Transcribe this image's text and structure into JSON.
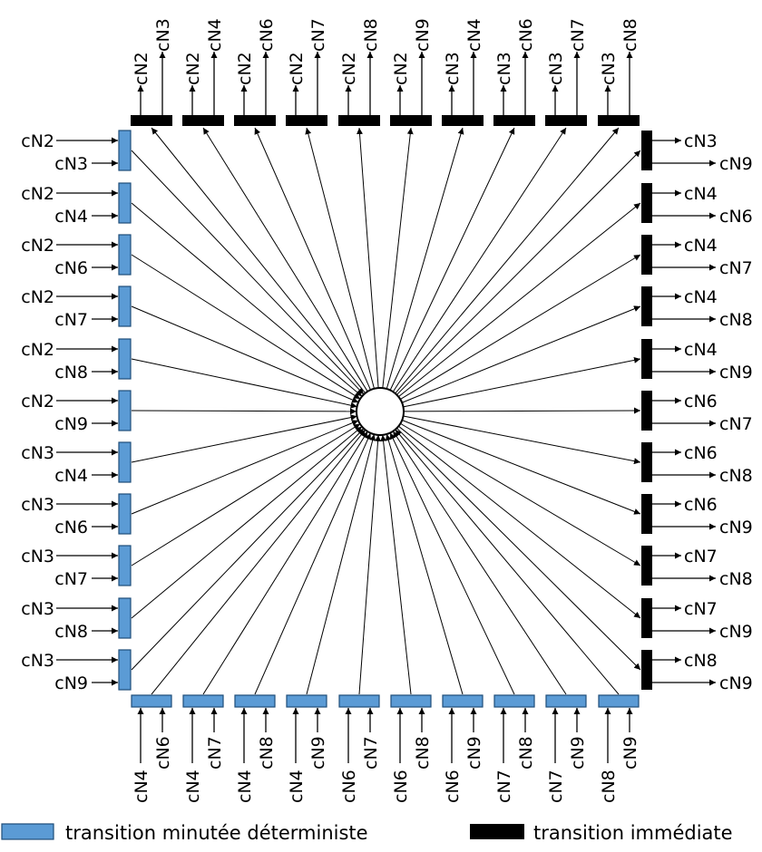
{
  "colors": {
    "timed_fill": "#5b9bd5",
    "timed_stroke": "#1f4e79",
    "immediate_fill": "#000000",
    "line": "#000000",
    "place_fill": "#ffffff"
  },
  "top_transitions": [
    [
      "cN2",
      "cN3"
    ],
    [
      "cN2",
      "cN4"
    ],
    [
      "cN2",
      "cN6"
    ],
    [
      "cN2",
      "cN7"
    ],
    [
      "cN2",
      "cN8"
    ],
    [
      "cN2",
      "cN9"
    ],
    [
      "cN3",
      "cN4"
    ],
    [
      "cN3",
      "cN6"
    ],
    [
      "cN3",
      "cN7"
    ],
    [
      "cN3",
      "cN8"
    ]
  ],
  "right_transitions": [
    [
      "cN3",
      "cN9"
    ],
    [
      "cN4",
      "cN6"
    ],
    [
      "cN4",
      "cN7"
    ],
    [
      "cN4",
      "cN8"
    ],
    [
      "cN4",
      "cN9"
    ],
    [
      "cN6",
      "cN7"
    ],
    [
      "cN6",
      "cN8"
    ],
    [
      "cN6",
      "cN9"
    ],
    [
      "cN7",
      "cN8"
    ],
    [
      "cN7",
      "cN9"
    ],
    [
      "cN8",
      "cN9"
    ]
  ],
  "left_transitions": [
    [
      "cN2",
      "cN3"
    ],
    [
      "cN2",
      "cN4"
    ],
    [
      "cN2",
      "cN6"
    ],
    [
      "cN2",
      "cN7"
    ],
    [
      "cN2",
      "cN8"
    ],
    [
      "cN2",
      "cN9"
    ],
    [
      "cN3",
      "cN4"
    ],
    [
      "cN3",
      "cN6"
    ],
    [
      "cN3",
      "cN7"
    ],
    [
      "cN3",
      "cN8"
    ],
    [
      "cN3",
      "cN9"
    ]
  ],
  "bottom_transitions": [
    [
      "cN4",
      "cN6"
    ],
    [
      "cN4",
      "cN7"
    ],
    [
      "cN4",
      "cN8"
    ],
    [
      "cN4",
      "cN9"
    ],
    [
      "cN6",
      "cN7"
    ],
    [
      "cN6",
      "cN8"
    ],
    [
      "cN6",
      "cN9"
    ],
    [
      "cN7",
      "cN8"
    ],
    [
      "cN7",
      "cN9"
    ],
    [
      "cN8",
      "cN9"
    ]
  ],
  "legend": {
    "timed_label": "transition minutée déterministe",
    "immediate_label": "transition immédiate"
  }
}
